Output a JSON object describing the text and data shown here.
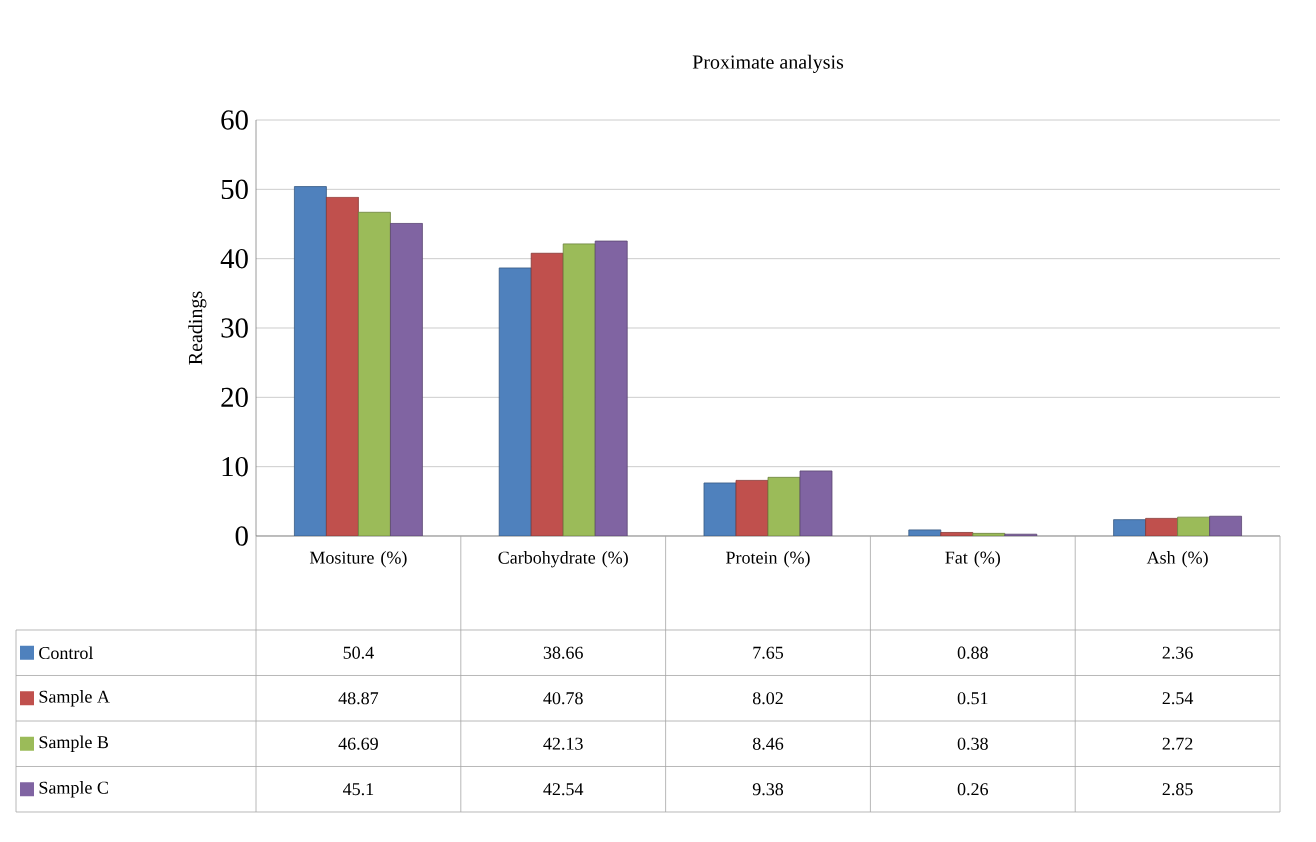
{
  "chart_data": {
    "type": "bar",
    "title": "Proximate analysis",
    "ylabel": "Readings",
    "categories": [
      "Mositure (%)",
      "Carbohydrate (%)",
      "Protein (%)",
      "Fat (%)",
      "Ash (%)"
    ],
    "series": [
      {
        "name": "Control",
        "color": "#4f81bd",
        "values": [
          50.4,
          38.66,
          7.65,
          0.88,
          2.36
        ]
      },
      {
        "name": "Sample A",
        "color": "#c0504d",
        "values": [
          48.87,
          40.78,
          8.02,
          0.51,
          2.54
        ]
      },
      {
        "name": "Sample B",
        "color": "#9bbb59",
        "values": [
          46.69,
          42.13,
          8.46,
          0.38,
          2.72
        ]
      },
      {
        "name": "Sample C",
        "color": "#8064a2",
        "values": [
          45.1,
          42.54,
          9.38,
          0.26,
          2.85
        ]
      }
    ],
    "ylim": [
      0,
      60
    ],
    "yticks": [
      0,
      10,
      20,
      30,
      40,
      50,
      60
    ],
    "grid": "y",
    "data_labels": true,
    "legend": "bottom"
  }
}
